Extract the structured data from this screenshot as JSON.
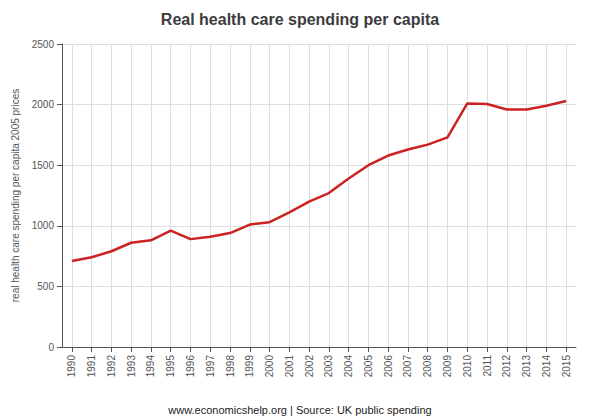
{
  "chart_data": {
    "type": "line",
    "title": "Real health care spending per capita",
    "y_label": "real health care spending per capita 2005 prices",
    "annotations": [
      "www.economicshelp.org | Source: UK public spending"
    ],
    "x": [
      1990,
      1991,
      1992,
      1993,
      1994,
      1995,
      1996,
      1997,
      1998,
      1999,
      2000,
      2001,
      2002,
      2003,
      2004,
      2005,
      2006,
      2007,
      2008,
      2009,
      2010,
      2011,
      2012,
      2013,
      2014,
      2015
    ],
    "values": [
      710,
      740,
      790,
      860,
      880,
      960,
      890,
      910,
      940,
      1010,
      1030,
      1110,
      1200,
      1270,
      1390,
      1500,
      1580,
      1630,
      1670,
      1730,
      2010,
      2005,
      1960,
      1960,
      1990,
      2030
    ],
    "color": "#cc2222",
    "xlim": [
      1989.5,
      2015.5
    ],
    "xticks": [
      1990,
      1991,
      1992,
      1993,
      1994,
      1995,
      1996,
      1997,
      1998,
      1999,
      2000,
      2001,
      2002,
      2003,
      2004,
      2005,
      2006,
      2007,
      2008,
      2009,
      2010,
      2011,
      2012,
      2013,
      2014,
      2015
    ],
    "ylim": [
      0,
      2500
    ],
    "yticks": [
      0,
      500,
      1000,
      1500,
      2000,
      2500
    ],
    "grid": true
  }
}
